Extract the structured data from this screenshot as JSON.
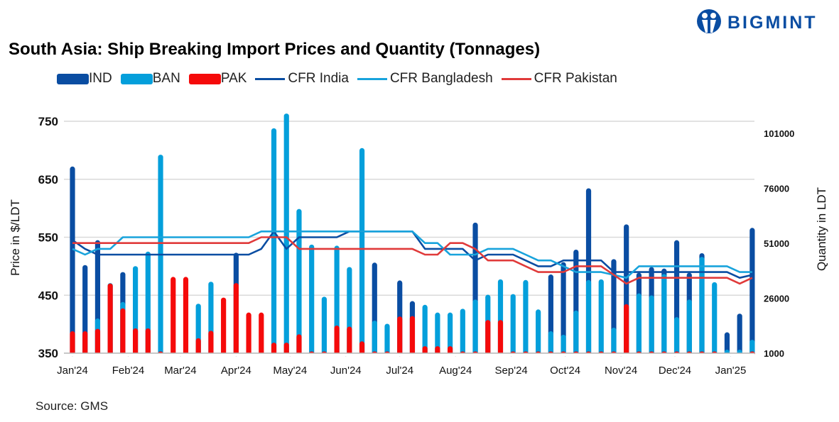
{
  "brand": {
    "name": "BIGMINT",
    "color": "#0a4da2"
  },
  "source": "Source: GMS",
  "chart_data": {
    "type": "bar+line",
    "title": "South Asia: Ship Breaking Import Prices and Quantity (Tonnages)",
    "ylabel_left": "Price in $/LDT",
    "ylabel_right": "Quantity in LDT",
    "ylim_left": [
      350,
      750
    ],
    "ylim_right": [
      1000,
      106500
    ],
    "yticks_left": [
      "750",
      "650",
      "550",
      "450",
      "350"
    ],
    "yticks_right": [
      "101000",
      "76000",
      "51000",
      "26000",
      "1000"
    ],
    "grid": true,
    "legend_position": "top",
    "x_start": "2024-01-01",
    "x_step_days": 7,
    "xticks": [
      {
        "label": "Jan'24",
        "date": "2024-01-01"
      },
      {
        "label": "Feb'24",
        "date": "2024-02-01"
      },
      {
        "label": "Mar'24",
        "date": "2024-03-01"
      },
      {
        "label": "Apr'24",
        "date": "2024-04-01"
      },
      {
        "label": "May'24",
        "date": "2024-05-01"
      },
      {
        "label": "Jun'24",
        "date": "2024-06-01"
      },
      {
        "label": "Jul'24",
        "date": "2024-07-01"
      },
      {
        "label": "Aug'24",
        "date": "2024-08-01"
      },
      {
        "label": "Sep'24",
        "date": "2024-09-01"
      },
      {
        "label": "Oct'24",
        "date": "2024-10-01"
      },
      {
        "label": "Nov'24",
        "date": "2024-11-01"
      },
      {
        "label": "Dec'24",
        "date": "2024-12-01"
      },
      {
        "label": "Jan'25",
        "date": "2025-01-01"
      }
    ],
    "bar_series": [
      {
        "name": "IND",
        "color": "#0a4da2",
        "axis": "right",
        "values": [
          85900,
          41100,
          52400,
          0,
          37900,
          0,
          0,
          0,
          0,
          0,
          0,
          0,
          0,
          46700,
          0,
          0,
          0,
          0,
          0,
          0,
          0,
          0,
          0,
          0,
          42200,
          0,
          34100,
          24700,
          0,
          0,
          0,
          0,
          60400,
          0,
          0,
          0,
          0,
          0,
          36800,
          42400,
          48100,
          76000,
          0,
          43800,
          59600,
          37600,
          40200,
          39500,
          52400,
          37600,
          46500,
          0,
          10500,
          19000,
          58000
        ]
      },
      {
        "name": "BAN",
        "color": "#049fdb",
        "axis": "right",
        "values": [
          0,
          0,
          16800,
          32900,
          24300,
          40600,
          47200,
          91300,
          0,
          0,
          23500,
          33500,
          0,
          0,
          0,
          0,
          103300,
          110000,
          66600,
          50400,
          26700,
          49900,
          40200,
          94300,
          15800,
          14400,
          0,
          0,
          23000,
          19500,
          19500,
          21200,
          25400,
          27600,
          34600,
          27900,
          34300,
          20900,
          11000,
          9400,
          20400,
          34300,
          34600,
          12600,
          0,
          28200,
          27300,
          37000,
          17400,
          25400,
          44800,
          33300,
          2600,
          2600,
          7100
        ]
      },
      {
        "name": "PAK",
        "color": "#f50a0a",
        "axis": "right",
        "values": [
          11000,
          11000,
          12100,
          32700,
          21400,
          12300,
          12300,
          1500,
          35700,
          35700,
          7800,
          11200,
          26300,
          32900,
          19500,
          19500,
          5800,
          5800,
          9600,
          1500,
          1500,
          13600,
          13100,
          6400,
          1500,
          1500,
          17700,
          17900,
          4200,
          4200,
          4200,
          1500,
          1500,
          16100,
          16100,
          1500,
          1500,
          1500,
          1500,
          1500,
          1500,
          1500,
          1500,
          1500,
          23300,
          1500,
          1500,
          1500,
          1500,
          1500,
          1500,
          1500,
          0,
          0,
          1500
        ]
      }
    ],
    "line_series": [
      {
        "name": "CFR India",
        "color": "#0a4da2",
        "axis": "left",
        "values": [
          545,
          530,
          520,
          520,
          520,
          520,
          520,
          520,
          520,
          520,
          520,
          520,
          520,
          520,
          520,
          530,
          560,
          530,
          550,
          550,
          550,
          550,
          560,
          560,
          560,
          560,
          560,
          560,
          530,
          530,
          530,
          530,
          510,
          520,
          520,
          520,
          510,
          500,
          500,
          510,
          510,
          510,
          510,
          490,
          490,
          490,
          490,
          490,
          490,
          490,
          490,
          490,
          490,
          480,
          485
        ]
      },
      {
        "name": "CFR Bangladesh",
        "color": "#18a3dc",
        "axis": "left",
        "values": [
          530,
          520,
          530,
          530,
          550,
          550,
          550,
          550,
          550,
          550,
          550,
          550,
          550,
          550,
          550,
          560,
          560,
          560,
          560,
          560,
          560,
          560,
          560,
          560,
          560,
          560,
          560,
          560,
          540,
          540,
          520,
          520,
          520,
          530,
          530,
          530,
          520,
          510,
          510,
          500,
          490,
          490,
          490,
          485,
          480,
          500,
          500,
          500,
          500,
          500,
          500,
          500,
          500,
          490,
          490
        ]
      },
      {
        "name": "CFR Pakistan",
        "color": "#e03a3a",
        "axis": "left",
        "values": [
          540,
          540,
          540,
          540,
          540,
          540,
          540,
          540,
          540,
          540,
          540,
          540,
          540,
          540,
          540,
          550,
          550,
          550,
          530,
          530,
          530,
          530,
          530,
          530,
          530,
          530,
          530,
          530,
          520,
          520,
          540,
          540,
          530,
          510,
          510,
          510,
          500,
          490,
          490,
          490,
          500,
          500,
          500,
          485,
          470,
          480,
          480,
          480,
          480,
          480,
          480,
          480,
          480,
          470,
          480
        ]
      }
    ]
  }
}
